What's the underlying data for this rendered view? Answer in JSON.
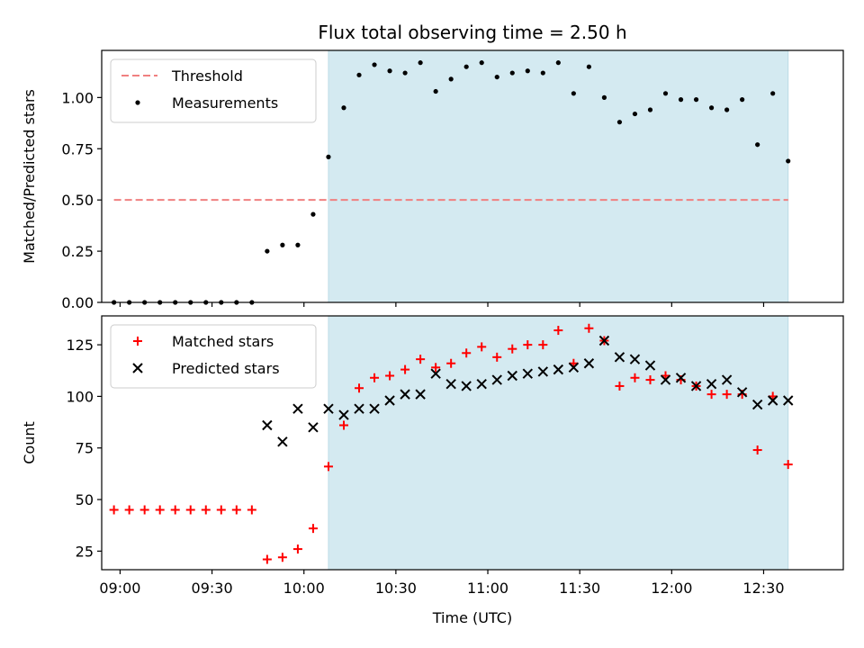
{
  "chart_data": [
    {
      "type": "scatter",
      "title": "Flux total observing time = 2.50 h",
      "xlabel": "",
      "ylabel": "Matched/Predicted stars",
      "xlim": [
        "08:54",
        "12:56"
      ],
      "ylim": [
        0,
        1.23
      ],
      "yticks": [
        "0.00",
        "0.25",
        "0.50",
        "0.75",
        "1.00"
      ],
      "xticks": [
        "09:00",
        "09:30",
        "10:00",
        "10:30",
        "11:00",
        "11:30",
        "12:00",
        "12:30"
      ],
      "show_xtick_labels": false,
      "grid": false,
      "legend_position": "top-left",
      "shaded_region": {
        "start": "10:08",
        "end": "12:38",
        "color": "#d4eaf1"
      },
      "threshold": {
        "name": "Threshold",
        "value": 0.5,
        "start": "08:58",
        "end": "12:38",
        "color": "#f08080"
      },
      "series": [
        {
          "name": "Measurements",
          "marker": "dot",
          "color": "#000000",
          "x": [
            "08:58",
            "09:03",
            "09:08",
            "09:13",
            "09:18",
            "09:23",
            "09:28",
            "09:33",
            "09:38",
            "09:43",
            "09:48",
            "09:53",
            "09:58",
            "10:03",
            "10:08",
            "10:13",
            "10:18",
            "10:23",
            "10:28",
            "10:33",
            "10:38",
            "10:43",
            "10:48",
            "10:53",
            "10:58",
            "11:03",
            "11:08",
            "11:13",
            "11:18",
            "11:23",
            "11:28",
            "11:33",
            "11:38",
            "11:43",
            "11:48",
            "11:53",
            "11:58",
            "12:03",
            "12:08",
            "12:13",
            "12:18",
            "12:23",
            "12:28",
            "12:33",
            "12:38"
          ],
          "y": [
            0,
            0,
            0,
            0,
            0,
            0,
            0,
            0,
            0,
            0,
            0.25,
            0.28,
            0.28,
            0.43,
            0.71,
            0.95,
            1.11,
            1.16,
            1.13,
            1.12,
            1.17,
            1.03,
            1.09,
            1.15,
            1.17,
            1.1,
            1.12,
            1.13,
            1.12,
            1.17,
            1.02,
            1.15,
            1.0,
            0.88,
            0.92,
            0.94,
            1.02,
            0.99,
            0.99,
            0.95,
            0.94,
            0.99,
            0.77,
            1.02,
            0.69
          ]
        }
      ]
    },
    {
      "type": "scatter",
      "title": "",
      "xlabel": "Time (UTC)",
      "ylabel": "Count",
      "xlim": [
        "08:54",
        "12:56"
      ],
      "ylim": [
        16,
        139
      ],
      "yticks": [
        "25",
        "50",
        "75",
        "100",
        "125"
      ],
      "xticks": [
        "09:00",
        "09:30",
        "10:00",
        "10:30",
        "11:00",
        "11:30",
        "12:00",
        "12:30"
      ],
      "show_xtick_labels": true,
      "grid": false,
      "legend_position": "top-left",
      "shaded_region": {
        "start": "10:08",
        "end": "12:38",
        "color": "#d4eaf1"
      },
      "series": [
        {
          "name": "Matched stars",
          "marker": "plus",
          "color": "#ff0000",
          "x": [
            "08:58",
            "09:03",
            "09:08",
            "09:13",
            "09:18",
            "09:23",
            "09:28",
            "09:33",
            "09:38",
            "09:43",
            "09:48",
            "09:53",
            "09:58",
            "10:03",
            "10:08",
            "10:13",
            "10:18",
            "10:23",
            "10:28",
            "10:33",
            "10:38",
            "10:43",
            "10:48",
            "10:53",
            "10:58",
            "11:03",
            "11:08",
            "11:13",
            "11:18",
            "11:23",
            "11:28",
            "11:33",
            "11:38",
            "11:43",
            "11:48",
            "11:53",
            "11:58",
            "12:03",
            "12:08",
            "12:13",
            "12:18",
            "12:23",
            "12:28",
            "12:33",
            "12:38"
          ],
          "y": [
            45,
            45,
            45,
            45,
            45,
            45,
            45,
            45,
            45,
            45,
            21,
            22,
            26,
            36,
            66,
            86,
            104,
            109,
            110,
            113,
            118,
            114,
            116,
            121,
            124,
            119,
            123,
            125,
            125,
            132,
            116,
            133,
            127,
            105,
            109,
            108,
            110,
            108,
            105,
            101,
            101,
            101,
            74,
            100,
            67
          ]
        },
        {
          "name": "Predicted stars",
          "marker": "x",
          "color": "#000000",
          "x": [
            "09:48",
            "09:53",
            "09:58",
            "10:03",
            "10:08",
            "10:13",
            "10:18",
            "10:23",
            "10:28",
            "10:33",
            "10:38",
            "10:43",
            "10:48",
            "10:53",
            "10:58",
            "11:03",
            "11:08",
            "11:13",
            "11:18",
            "11:23",
            "11:28",
            "11:33",
            "11:38",
            "11:43",
            "11:48",
            "11:53",
            "11:58",
            "12:03",
            "12:08",
            "12:13",
            "12:18",
            "12:23",
            "12:28",
            "12:33",
            "12:38"
          ],
          "y": [
            86,
            78,
            94,
            85,
            94,
            91,
            94,
            94,
            98,
            101,
            101,
            111,
            106,
            105,
            106,
            108,
            110,
            111,
            112,
            113,
            114,
            116,
            127,
            119,
            118,
            115,
            108,
            109,
            105,
            106,
            108,
            102,
            96,
            98,
            98
          ]
        }
      ]
    }
  ]
}
